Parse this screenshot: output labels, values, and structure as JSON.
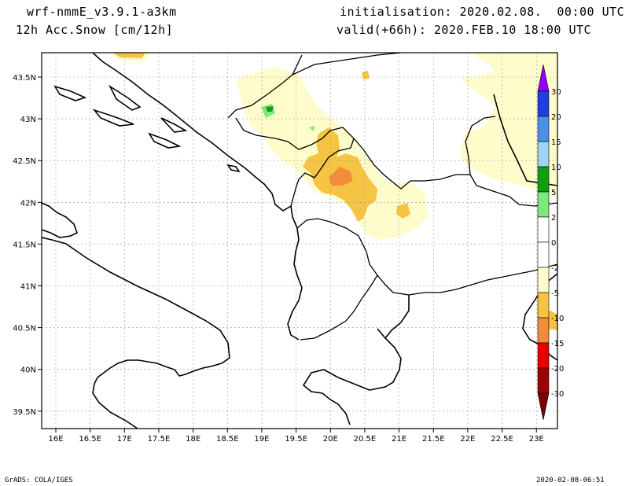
{
  "header": {
    "model": "wrf-nmmE_v3.9.1-a3km",
    "field": "12h Acc.Snow [cm/12h]",
    "init": "initialisation: 2020.02.08.  00:00 UTC",
    "valid": "valid(+66h): 2020.FEB.10 18:00 UTC"
  },
  "footer": {
    "credit": "GrADS: COLA/IGES",
    "stamp": "2020-02-08-06:51"
  },
  "axes": {
    "lon_labels": [
      "16E",
      "16.5E",
      "17E",
      "17.5E",
      "18E",
      "18.5E",
      "19E",
      "19.5E",
      "20E",
      "20.5E",
      "21E",
      "21.5E",
      "22E",
      "22.5E",
      "23E"
    ],
    "lat_labels": [
      "43.5N",
      "43N",
      "42.5N",
      "42N",
      "41.5N",
      "41N",
      "40.5N",
      "40N",
      "39.5N"
    ],
    "grid": true
  },
  "colorbar": {
    "levels": [
      "30",
      "20",
      "15",
      "10",
      "5",
      "2",
      "0",
      "-2",
      "-5",
      "-10",
      "-15",
      "-20",
      "-30"
    ],
    "colors": [
      "#8b00ff",
      "#1f3fe0",
      "#4a90e8",
      "#9fd4f5",
      "#0fa00f",
      "#7ee87e",
      "#ffffff",
      "#ffffff",
      "#fffccb",
      "#f5c443",
      "#f08c3a",
      "#e80000",
      "#a00000",
      "#7a0000"
    ]
  },
  "colors": {
    "snow_light": "#fffccb",
    "snow_5_10": "#f5c443",
    "snow_10_15": "#f08c3a",
    "grid": "#999999",
    "coast": "#000000"
  }
}
